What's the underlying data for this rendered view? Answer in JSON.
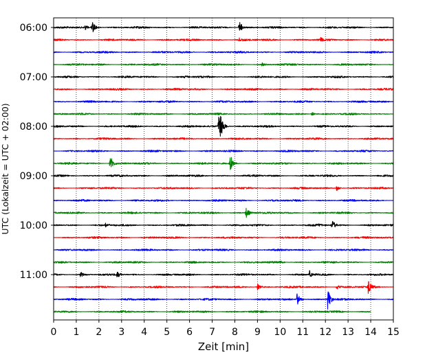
{
  "chart_data": {
    "type": "line",
    "title": "",
    "xlabel": "Zeit  [min]",
    "ylabel": "UTC (Lokalzeit = UTC + 02:00)",
    "xlim": [
      0,
      15
    ],
    "x_ticks": [
      0,
      1,
      2,
      3,
      4,
      5,
      6,
      7,
      8,
      9,
      10,
      11,
      12,
      13,
      14,
      15
    ],
    "x_tick_labels": [
      "0",
      "1",
      "2",
      "3",
      "4",
      "5",
      "6",
      "7",
      "8",
      "9",
      "10",
      "11",
      "12",
      "13",
      "14",
      "15"
    ],
    "y_tick_labels": [
      "06:00",
      "07:00",
      "08:00",
      "09:00",
      "10:00",
      "11:00"
    ],
    "grid": "vertical dotted",
    "trace_interval_min": 15,
    "trace_colors": [
      "#000000",
      "#ff0000",
      "#0000ff",
      "#008000"
    ],
    "traces": [
      {
        "start": "06:00",
        "color": "#000000",
        "events": [
          {
            "t": 1.7,
            "amp": 1.0
          },
          {
            "t": 8.2,
            "amp": 1.0
          },
          {
            "t": 1.4,
            "amp": 0.35
          }
        ]
      },
      {
        "start": "06:15",
        "color": "#ff0000",
        "events": [
          {
            "t": 8.2,
            "amp": 0.35
          },
          {
            "t": 11.8,
            "amp": 0.45
          }
        ]
      },
      {
        "start": "06:30",
        "color": "#0000ff",
        "events": []
      },
      {
        "start": "06:45",
        "color": "#008000",
        "events": [
          {
            "t": 9.2,
            "amp": 0.3
          }
        ]
      },
      {
        "start": "07:00",
        "color": "#000000",
        "events": [
          {
            "t": 5.8,
            "amp": 0.3
          }
        ]
      },
      {
        "start": "07:15",
        "color": "#ff0000",
        "events": []
      },
      {
        "start": "07:30",
        "color": "#0000ff",
        "events": []
      },
      {
        "start": "07:45",
        "color": "#008000",
        "events": [
          {
            "t": 11.4,
            "amp": 0.3
          }
        ]
      },
      {
        "start": "08:00",
        "color": "#000000",
        "events": [
          {
            "t": 7.3,
            "amp": 3.0
          }
        ]
      },
      {
        "start": "08:15",
        "color": "#ff0000",
        "events": []
      },
      {
        "start": "08:30",
        "color": "#0000ff",
        "events": []
      },
      {
        "start": "08:45",
        "color": "#008000",
        "events": [
          {
            "t": 2.5,
            "amp": 1.2
          },
          {
            "t": 7.8,
            "amp": 1.3
          }
        ]
      },
      {
        "start": "09:00",
        "color": "#000000",
        "events": []
      },
      {
        "start": "09:15",
        "color": "#ff0000",
        "events": [
          {
            "t": 12.5,
            "amp": 0.45
          }
        ]
      },
      {
        "start": "09:30",
        "color": "#0000ff",
        "events": []
      },
      {
        "start": "09:45",
        "color": "#008000",
        "events": [
          {
            "t": 8.5,
            "amp": 0.8
          }
        ]
      },
      {
        "start": "10:00",
        "color": "#000000",
        "events": [
          {
            "t": 12.3,
            "amp": 0.8
          },
          {
            "t": 11.6,
            "amp": 0.35
          },
          {
            "t": 2.3,
            "amp": 0.3
          }
        ]
      },
      {
        "start": "10:15",
        "color": "#ff0000",
        "events": []
      },
      {
        "start": "10:30",
        "color": "#0000ff",
        "events": []
      },
      {
        "start": "10:45",
        "color": "#008000",
        "events": [
          {
            "t": 10.0,
            "amp": 0.3
          }
        ]
      },
      {
        "start": "11:00",
        "color": "#000000",
        "events": [
          {
            "t": 1.2,
            "amp": 0.5
          },
          {
            "t": 2.8,
            "amp": 0.55
          },
          {
            "t": 11.3,
            "amp": 0.6
          }
        ]
      },
      {
        "start": "11:15",
        "color": "#ff0000",
        "events": [
          {
            "t": 9.0,
            "amp": 0.5
          },
          {
            "t": 13.9,
            "amp": 1.2
          },
          {
            "t": 12.5,
            "amp": 0.4
          }
        ]
      },
      {
        "start": "11:30",
        "color": "#0000ff",
        "events": [
          {
            "t": 10.75,
            "amp": 1.0
          },
          {
            "t": 12.1,
            "amp": 1.5
          }
        ]
      },
      {
        "start": "11:45",
        "color": "#008000",
        "events": [],
        "end_t": 14.0
      }
    ]
  }
}
